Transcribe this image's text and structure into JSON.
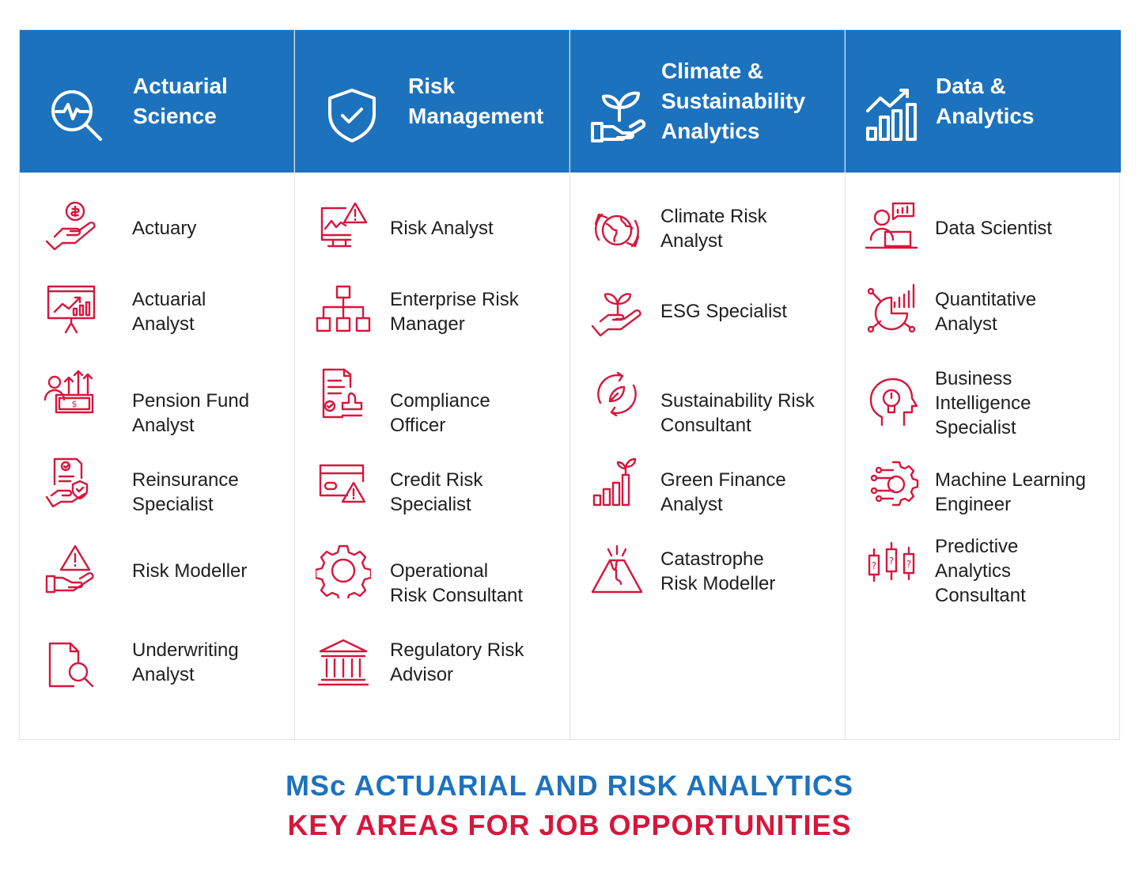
{
  "columns": [
    {
      "title": "Actuarial\nScience",
      "icon": "analytics-search-icon",
      "items": [
        {
          "label": "Actuary",
          "icon": "money-hand-icon"
        },
        {
          "label": "Actuarial\nAnalyst",
          "icon": "presentation-chart-icon"
        },
        {
          "label": "Pension Fund\nAnalyst",
          "icon": "pension-growth-icon"
        },
        {
          "label": "Reinsurance\nSpecialist",
          "icon": "policy-shield-hand-icon"
        },
        {
          "label": "Risk Modeller",
          "icon": "warning-hand-icon"
        },
        {
          "label": "Underwriting\nAnalyst",
          "icon": "document-search-icon"
        }
      ]
    },
    {
      "title": "Risk\nManagement",
      "icon": "shield-check-icon",
      "items": [
        {
          "label": "Risk Analyst",
          "icon": "monitor-warning-icon"
        },
        {
          "label": "Enterprise Risk\nManager",
          "icon": "org-chart-icon"
        },
        {
          "label": "Compliance\nOfficer",
          "icon": "document-stamp-icon"
        },
        {
          "label": "Credit Risk\nSpecialist",
          "icon": "credit-card-warning-icon"
        },
        {
          "label": "Operational\nRisk Consultant",
          "icon": "gear-icon"
        },
        {
          "label": "Regulatory Risk\nAdvisor",
          "icon": "institution-icon"
        }
      ]
    },
    {
      "title": "Climate &\nSustainability\nAnalytics",
      "icon": "plant-hand-icon",
      "items": [
        {
          "label": "Climate Risk\nAnalyst",
          "icon": "globe-cycle-icon"
        },
        {
          "label": "ESG Specialist",
          "icon": "sprout-hand-icon"
        },
        {
          "label": "Sustainability Risk\nConsultant",
          "icon": "leaf-recycle-icon"
        },
        {
          "label": "Green Finance\nAnalyst",
          "icon": "growth-plant-icon"
        },
        {
          "label": "Catastrophe\nRisk Modeller",
          "icon": "volcano-icon"
        }
      ]
    },
    {
      "title": "Data &\nAnalytics",
      "icon": "bar-chart-trend-icon",
      "items": [
        {
          "label": "Data Scientist",
          "icon": "person-laptop-icon"
        },
        {
          "label": "Quantitative\nAnalyst",
          "icon": "pie-bar-chart-icon"
        },
        {
          "label": "Business\nIntelligence\nSpecialist",
          "icon": "brain-bulb-icon"
        },
        {
          "label": "Machine Learning\nEngineer",
          "icon": "circuit-gear-icon"
        },
        {
          "label": "Predictive\nAnalytics\nConsultant",
          "icon": "candlestick-question-icon"
        }
      ]
    }
  ],
  "footer": {
    "line1": "MSc ACTUARIAL AND RISK ANALYTICS",
    "line2": "KEY AREAS FOR JOB OPPORTUNITIES"
  },
  "colors": {
    "header": "#1d72bd",
    "accent": "#d6173d",
    "footer_line1": "#1d72bd",
    "footer_line2": "#d6173d"
  }
}
